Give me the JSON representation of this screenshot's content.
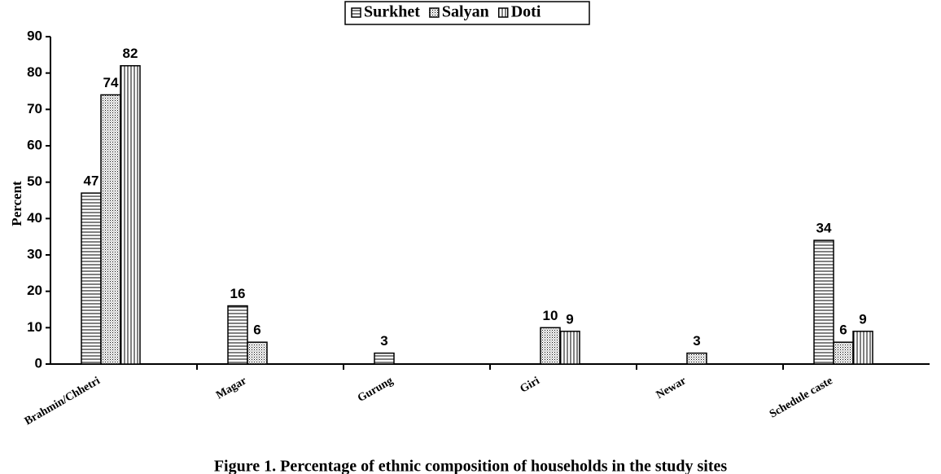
{
  "chart_data": {
    "type": "bar",
    "title": "Figure 1. Percentage of ethnic composition of households in the study sites",
    "ylabel": "Percent",
    "categories": [
      "Brahmin/Chhetri",
      "Magar",
      "Gurung",
      "Giri",
      "Newar",
      "Schedule caste"
    ],
    "series": [
      {
        "name": "Surkhet",
        "color": "#000000",
        "pattern": "horizontal",
        "values": [
          47,
          16,
          3,
          null,
          null,
          34
        ]
      },
      {
        "name": "Salyan",
        "color": "#000000",
        "pattern": "dots",
        "values": [
          74,
          6,
          null,
          10,
          3,
          6
        ]
      },
      {
        "name": "Doti",
        "color": "#000000",
        "pattern": "vertical",
        "values": [
          82,
          null,
          null,
          9,
          null,
          9
        ]
      }
    ],
    "ylim": [
      0,
      90
    ],
    "yticks": [
      0,
      10,
      20,
      30,
      40,
      50,
      60,
      70,
      80,
      90
    ],
    "grid": false,
    "legend": "top"
  }
}
